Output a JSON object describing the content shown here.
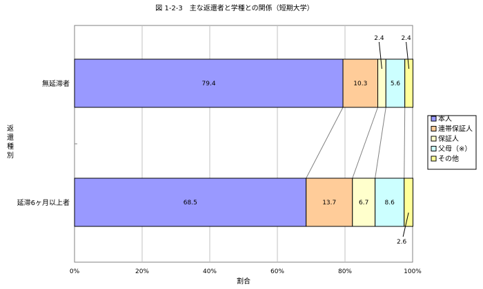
{
  "chart_data": {
    "type": "bar",
    "orientation": "horizontal",
    "stacked": true,
    "title": "図 1-2-3　主な返還者と学種との関係（短期大学）",
    "xlabel": "割合",
    "ylabel": "返還種別",
    "xlim": [
      0,
      100
    ],
    "x_ticks": [
      "0%",
      "20%",
      "40%",
      "60%",
      "80%",
      "100%"
    ],
    "grid": true,
    "legend_position": "right",
    "categories": [
      "無延滞者",
      "延滞6ヶ月以上者"
    ],
    "series": [
      {
        "name": "本人",
        "color": "#9999ff",
        "values": [
          79.4,
          68.5
        ],
        "labels": [
          "79.4",
          "68.5"
        ]
      },
      {
        "name": "連帯保証人",
        "color": "#ffcc99",
        "values": [
          10.3,
          13.7
        ],
        "labels": [
          "10.3",
          "13.7"
        ]
      },
      {
        "name": "保証人",
        "color": "#ffffcc",
        "values": [
          2.4,
          6.7
        ],
        "labels": [
          "2.4",
          "6.7"
        ]
      },
      {
        "name": "父母（※）",
        "color": "#ccffff",
        "values": [
          5.6,
          8.6
        ],
        "labels": [
          "5.6",
          "8.6"
        ]
      },
      {
        "name": "その他",
        "color": "#ffff99",
        "values": [
          2.4,
          2.6
        ],
        "labels": [
          "2.4",
          "2.6"
        ]
      }
    ]
  }
}
